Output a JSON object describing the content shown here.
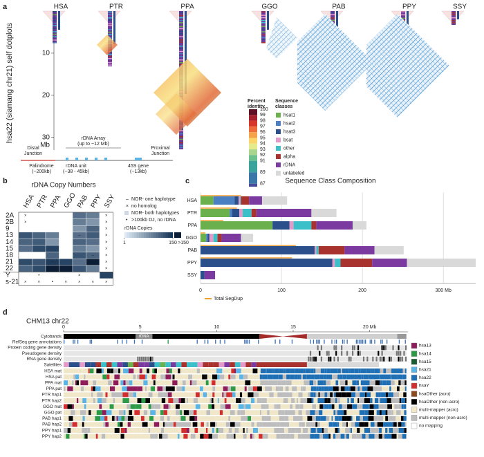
{
  "panel_a": {
    "letter": "a",
    "species": [
      "HSA",
      "PTR",
      "PPA",
      "GGO",
      "PAB",
      "PPY",
      "SSY"
    ],
    "ylabel": "hsa22 (siamang chr21) self dotplots",
    "ylim": [
      0,
      33
    ],
    "yticks": [
      10,
      20,
      30
    ],
    "yunit": "Mb",
    "identity": {
      "title": [
        "Percent",
        "identity"
      ],
      "lim": [
        86.5,
        100
      ],
      "ticks": [
        100,
        99,
        98,
        97,
        96,
        95,
        94,
        93,
        92,
        91,
        89,
        87
      ],
      "colors": [
        "#5e0f24",
        "#a51f2d",
        "#d8352a",
        "#ee6b3b",
        "#f5a34a",
        "#f9d56a",
        "#e5eb8c",
        "#a9d68e",
        "#6cc08e",
        "#3aa39b",
        "#3b78a8",
        "#4a4a9a"
      ]
    },
    "classes": {
      "title": [
        "Sequence",
        "classes"
      ],
      "items": [
        {
          "name": "hsat1",
          "color": "#6ab04c"
        },
        {
          "name": "hsat2",
          "color": "#4a7fc1"
        },
        {
          "name": "hsat3",
          "color": "#2a4f8a"
        },
        {
          "name": "bsat",
          "color": "#e39ac8"
        },
        {
          "name": "other",
          "color": "#3bbfc9"
        },
        {
          "name": "alpha",
          "color": "#a8322d"
        },
        {
          "name": "rDNA",
          "color": "#7b3aa0"
        },
        {
          "name": "unlabeled",
          "color": "#d9d9d9"
        }
      ]
    },
    "schematic": {
      "distal": [
        "Distal",
        "Junction"
      ],
      "palindrome": [
        "Palindrome",
        "(~200kb)"
      ],
      "array": [
        "rDNA Array",
        "(up to ~12 Mb)"
      ],
      "unit": [
        "rDNA unit",
        "(~38 - 45kb)"
      ],
      "gene": [
        "45S gene",
        "(~13kb)"
      ],
      "proximal": [
        "Proximal",
        "Junction"
      ]
    }
  },
  "panel_b": {
    "letter": "b",
    "title": "rDNA Copy Numbers",
    "columns": [
      "HSA",
      "PTR",
      "PPA",
      "GGO",
      "PAB",
      "PPY",
      "SSY"
    ],
    "rows": [
      "2A",
      "2B",
      "9",
      "13",
      "14",
      "15",
      "18",
      "21",
      "22",
      "Y",
      "s-21"
    ],
    "values": [
      [
        0,
        0,
        0,
        0,
        30,
        20,
        0
      ],
      [
        0,
        0,
        0,
        0,
        20,
        10,
        0
      ],
      [
        0,
        0,
        0,
        0,
        10,
        40,
        0
      ],
      [
        60,
        40,
        20,
        0,
        30,
        50,
        0
      ],
      [
        40,
        50,
        10,
        0,
        40,
        30,
        0
      ],
      [
        30,
        80,
        100,
        0,
        20,
        10,
        0
      ],
      [
        0,
        0,
        40,
        0,
        60,
        40,
        0
      ],
      [
        80,
        60,
        120,
        100,
        30,
        200,
        0
      ],
      [
        40,
        80,
        200,
        200,
        60,
        20,
        0
      ],
      [
        0,
        0,
        0,
        0,
        0,
        0,
        100
      ],
      [
        0,
        0,
        0,
        0,
        0,
        0,
        0
      ]
    ],
    "symbols": [
      [
        "×",
        null,
        null,
        null,
        null,
        null,
        "×"
      ],
      [
        "×",
        null,
        null,
        null,
        null,
        null,
        "×"
      ],
      [
        null,
        null,
        null,
        null,
        null,
        null,
        "×"
      ],
      [
        null,
        null,
        null,
        null,
        "–",
        null,
        "×"
      ],
      [
        null,
        null,
        null,
        null,
        null,
        null,
        "×"
      ],
      [
        null,
        null,
        null,
        null,
        null,
        null,
        "×"
      ],
      [
        null,
        null,
        null,
        null,
        null,
        "–",
        "×"
      ],
      [
        null,
        null,
        "–",
        null,
        null,
        null,
        "×"
      ],
      [
        null,
        null,
        null,
        null,
        null,
        null,
        "×"
      ],
      [
        null,
        "•",
        null,
        null,
        "×",
        null,
        null
      ],
      [
        "×",
        "×",
        "•",
        "×",
        "×",
        "×",
        "×"
      ]
    ],
    "legend": [
      {
        "symbol": "–",
        "label": "NOR- one haplotype"
      },
      {
        "symbol": "×",
        "label": "no homolog"
      },
      {
        "symbol": null,
        "label": "NOR- both haplotypes"
      },
      {
        "symbol": "•",
        "label": ">100kb DJ, no rDNA"
      }
    ],
    "scale_title": "rDNA Copies",
    "scale_lim": [
      1,
      150
    ],
    "scale_ticks": [
      1,
      150
    ],
    "scale_over": ">150"
  },
  "chart_data": [
    {
      "type": "stacked-barh",
      "letter": "c",
      "title": "Sequence Class Composition",
      "categories": [
        "HSA",
        "PTR",
        "PPA",
        "GGO",
        "PAB",
        "PPY",
        "SSY"
      ],
      "series": [
        {
          "name": "hsat1",
          "color": "#6ab04c",
          "values": [
            16,
            36,
            89,
            7,
            0,
            0,
            0
          ]
        },
        {
          "name": "hsat2",
          "color": "#4a7fc1",
          "values": [
            26,
            3,
            0,
            2,
            0,
            0,
            0
          ]
        },
        {
          "name": "hsat3",
          "color": "#2a4f8a",
          "values": [
            5,
            9,
            21,
            2,
            141,
            163,
            5
          ]
        },
        {
          "name": "bsat",
          "color": "#e39ac8",
          "values": [
            2,
            4,
            5,
            5,
            2,
            3,
            0
          ]
        },
        {
          "name": "other",
          "color": "#3bbfc9",
          "values": [
            1,
            11,
            22,
            5,
            3,
            7,
            0
          ]
        },
        {
          "name": "alpha",
          "color": "#a8322d",
          "values": [
            10,
            6,
            6,
            5,
            32,
            39,
            0
          ]
        },
        {
          "name": "rDNA",
          "color": "#7b3aa0",
          "values": [
            16,
            68,
            45,
            24,
            37,
            43,
            13
          ]
        },
        {
          "name": "unlabeled",
          "color": "#d9d9d9",
          "values": [
            31,
            31,
            17,
            15,
            36,
            85,
            0
          ]
        }
      ],
      "segdup": {
        "name": "Total SegDup",
        "color": "#f0a030",
        "values": [
          50,
          45,
          28,
          6,
          118,
          113,
          0
        ]
      },
      "xlim": [
        0,
        340
      ],
      "xticks": [
        0,
        100,
        200,
        {
          "value": 300,
          "label": "300 Mb"
        }
      ],
      "grid": true
    }
  ],
  "panel_d": {
    "letter": "d",
    "title": "CHM13 chr22",
    "xlim": [
      0,
      22.5
    ],
    "xticks": [
      0,
      5,
      10,
      15,
      {
        "value": 20,
        "label": "20 Mb"
      }
    ],
    "cytoband_label": "rDNA",
    "tracks": [
      "Cytobands",
      "RefSeq gene annotations",
      "Protein coding gene density",
      "Pseudogene density",
      "RNA gene density",
      "Satellites",
      "HSA mat",
      "HSA pat",
      "PPA mat",
      "PPA pat",
      "PTR hap1",
      "PTR hap2",
      "GGO mat",
      "GGO pat",
      "PAB hap1",
      "PAB hap2",
      "PPY hap1",
      "PPY hap2"
    ],
    "legend": [
      {
        "name": "hsa13",
        "color": "#8e1c5a"
      },
      {
        "name": "hsa14",
        "color": "#2d9a48"
      },
      {
        "name": "hsa15",
        "color": "#1a5c32"
      },
      {
        "name": "hsa21",
        "color": "#5ab4e6"
      },
      {
        "name": "hsa22",
        "color": "#1f6fb5"
      },
      {
        "name": "hsaY",
        "color": "#d22e2e"
      },
      {
        "name": "hsaOther (acro)",
        "color": "#8b4a1f"
      },
      {
        "name": "hsaOther (non-acro)",
        "color": "#000000"
      },
      {
        "name": "multi-mapper (acro)",
        "color": "#f0e6c8"
      },
      {
        "name": "multi-mapper (non-acro)",
        "color": "#bdbdbd"
      },
      {
        "name": "no mapping",
        "color": "#ffffff"
      }
    ]
  }
}
